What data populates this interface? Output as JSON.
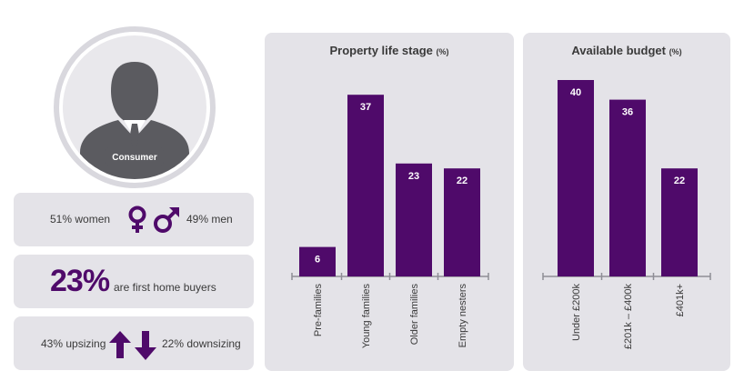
{
  "consumer": {
    "label": "Consumer",
    "icon": "person-icon"
  },
  "gender": {
    "women_text": "51% women",
    "men_text": "49% men"
  },
  "first_home": {
    "percent": "23%",
    "text": "are first home buyers"
  },
  "sizing": {
    "up_text": "43% upsizing",
    "down_text": "22% downsizing"
  },
  "colors": {
    "accent": "#4f0a6a",
    "panel": "#e4e3e8",
    "ring": "#d9d8de",
    "avatar": "#5b5b60"
  },
  "chart_data": [
    {
      "type": "bar",
      "title": "Property life stage",
      "unit": "(%)",
      "categories": [
        "Pre-families",
        "Young families",
        "Older families",
        "Empty nesters"
      ],
      "values": [
        6,
        37,
        23,
        22
      ],
      "ylim": [
        0,
        40
      ],
      "xlabel": "",
      "ylabel": ""
    },
    {
      "type": "bar",
      "title": "Available budget",
      "unit": "(%)",
      "categories": [
        "Under £200k",
        "£201k – £400k",
        "£401k+"
      ],
      "values": [
        40,
        36,
        22
      ],
      "ylim": [
        0,
        40
      ],
      "xlabel": "",
      "ylabel": ""
    }
  ]
}
